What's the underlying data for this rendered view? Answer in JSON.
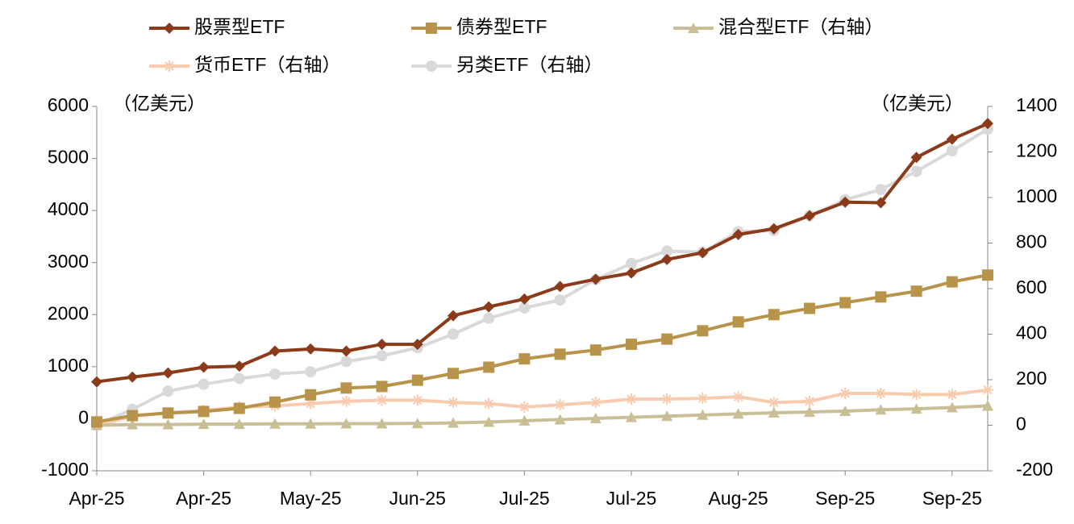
{
  "chart_data": {
    "type": "line",
    "categories": [
      "Apr-25",
      null,
      null,
      "Apr-25",
      null,
      null,
      "May-25",
      null,
      null,
      "Jun-25",
      null,
      null,
      "Jul-25",
      null,
      null,
      "Jul-25",
      null,
      null,
      "Aug-25",
      null,
      null,
      "Sep-25",
      null,
      null,
      "Sep-25",
      null
    ],
    "y_unit_label": "（亿美元）",
    "y2_unit_label": "（亿美元）",
    "ylim": [
      -1000,
      6000
    ],
    "yticks": [
      -1000,
      0,
      1000,
      2000,
      3000,
      4000,
      5000,
      6000
    ],
    "y2lim": [
      -200,
      1400
    ],
    "y2ticks": [
      -200,
      0,
      200,
      400,
      600,
      800,
      1000,
      1200,
      1400
    ],
    "series": [
      {
        "name": "股票型ETF",
        "color": "#8b3a1a",
        "marker": "diamond",
        "values": [
          710,
          800,
          880,
          990,
          1010,
          1300,
          1340,
          1300,
          1430,
          1430,
          1980,
          2150,
          2300,
          2540,
          2680,
          2800,
          3060,
          3190,
          3540,
          3650,
          3900,
          4160,
          4150,
          5020,
          5370,
          5670
        ]
      },
      {
        "name": "债券型ETF",
        "color": "#b8944a",
        "marker": "square",
        "values": [
          -60,
          60,
          110,
          140,
          200,
          320,
          460,
          590,
          620,
          740,
          870,
          990,
          1150,
          1240,
          1320,
          1430,
          1530,
          1690,
          1860,
          2000,
          2120,
          2230,
          2340,
          2450,
          2630,
          2760
        ]
      },
      {
        "name": "混合型ETF（右轴）",
        "color": "#c9be96",
        "marker": "triangle",
        "axis": "y2",
        "values": [
          0,
          3,
          3,
          5,
          5,
          6,
          6,
          7,
          7,
          8,
          10,
          14,
          20,
          25,
          30,
          35,
          40,
          45,
          50,
          55,
          58,
          62,
          68,
          72,
          78,
          85
        ]
      },
      {
        "name": "货币ETF（右轴）",
        "color": "#f9cbae",
        "marker": "star",
        "axis": "y2",
        "values": [
          0,
          40,
          55,
          65,
          80,
          85,
          95,
          105,
          110,
          110,
          100,
          95,
          80,
          90,
          100,
          115,
          115,
          118,
          125,
          100,
          105,
          140,
          140,
          135,
          135,
          155
        ]
      },
      {
        "name": "另类ETF（右轴）",
        "color": "#d9d9d9",
        "marker": "circle",
        "axis": "y2",
        "values": [
          0,
          70,
          150,
          180,
          205,
          225,
          235,
          280,
          305,
          340,
          400,
          470,
          515,
          550,
          640,
          710,
          765,
          760,
          850,
          855,
          920,
          990,
          1035,
          1115,
          1205,
          1300
        ]
      }
    ]
  }
}
